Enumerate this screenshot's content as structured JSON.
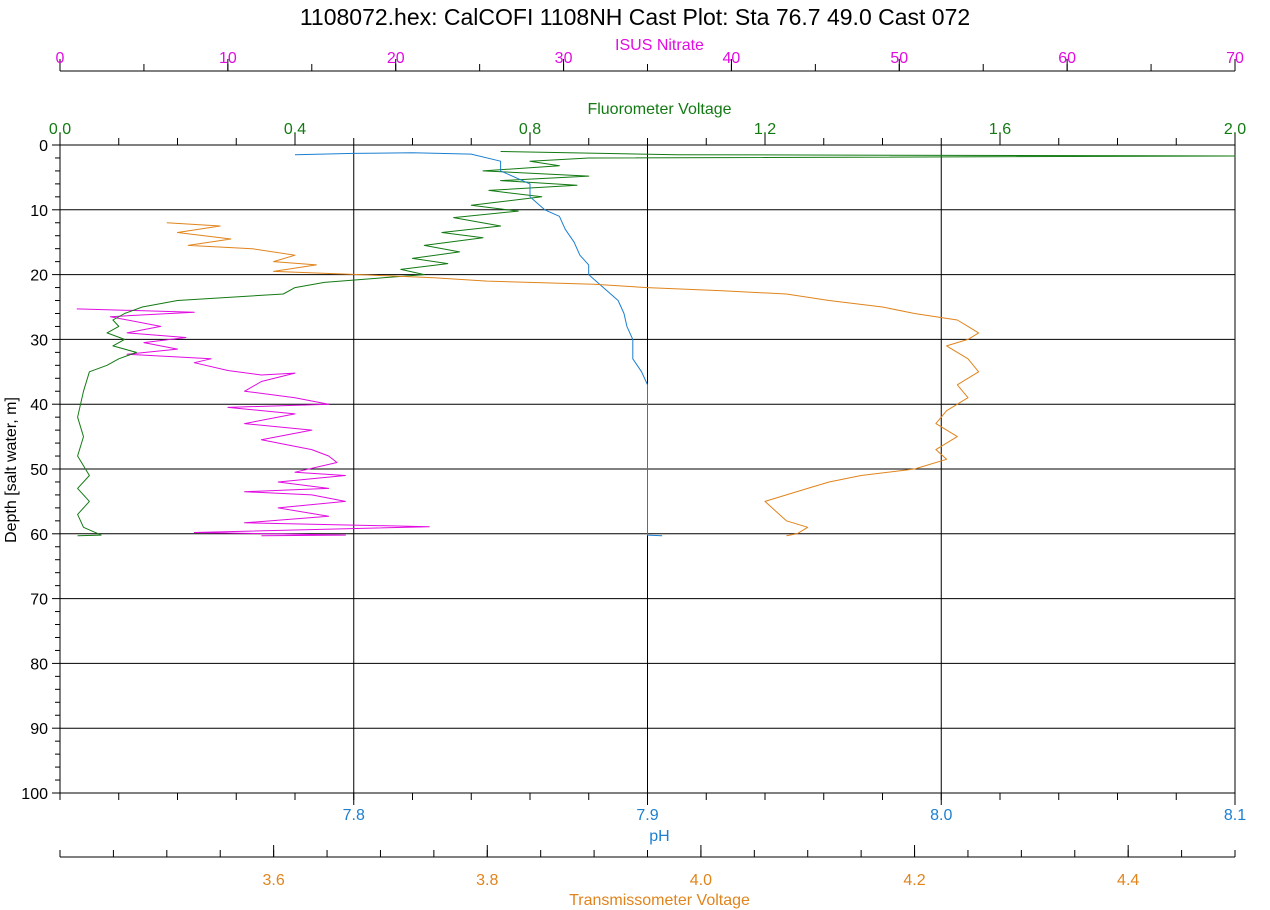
{
  "chart_data": {
    "type": "line",
    "title": "1108072.hex: CalCOFI 1108NH Cast Plot: Sta 76.7 49.0 Cast 072",
    "grid": true,
    "y_axis": {
      "label": "Depth [salt water, m]",
      "range": [
        0,
        100
      ],
      "inverted": true,
      "ticks": [
        "0",
        "10",
        "20",
        "30",
        "40",
        "50",
        "60",
        "70",
        "80",
        "90",
        "100"
      ]
    },
    "x_axes": [
      {
        "id": "nitrate",
        "label": "ISUS Nitrate",
        "position": "top",
        "color": "#e10ce1",
        "range": [
          0,
          70
        ],
        "ticks": [
          "0",
          "10",
          "20",
          "30",
          "40",
          "50",
          "60",
          "70"
        ]
      },
      {
        "id": "fluor",
        "label": "Fluorometer Voltage",
        "position": "top",
        "color": "#137a13",
        "range": [
          0,
          2
        ],
        "ticks": [
          "0.0",
          "0.4",
          "0.8",
          "1.2",
          "1.6",
          "2.0"
        ]
      },
      {
        "id": "ph",
        "label": "pH",
        "position": "bottom",
        "color": "#1c7fd0",
        "range": [
          7.7,
          8.1
        ],
        "ticks": [
          "7.8",
          "7.9",
          "8.0",
          "8.1"
        ]
      },
      {
        "id": "trans",
        "label": "Transmissometer Voltage",
        "position": "bottom",
        "color": "#e0841c",
        "range": [
          3.4,
          4.5
        ],
        "ticks": [
          "3.6",
          "3.8",
          "4.0",
          "4.2",
          "4.4"
        ]
      }
    ],
    "series": [
      {
        "axis": "nitrate",
        "color": "#e10ce1",
        "points": [
          [
            1,
            25.3
          ],
          [
            8,
            25.8
          ],
          [
            3,
            26.5
          ],
          [
            6,
            28
          ],
          [
            4,
            29
          ],
          [
            7.5,
            29.7
          ],
          [
            5,
            30.5
          ],
          [
            7,
            31.5
          ],
          [
            4,
            32.3
          ],
          [
            9,
            33
          ],
          [
            8,
            33.6
          ],
          [
            10,
            34.8
          ],
          [
            12,
            35.5
          ],
          [
            14,
            35.2
          ],
          [
            12,
            36.5
          ],
          [
            11,
            38
          ],
          [
            14,
            39
          ],
          [
            16,
            40
          ],
          [
            10,
            40.5
          ],
          [
            14,
            41.5
          ],
          [
            11,
            43
          ],
          [
            15,
            44
          ],
          [
            12,
            45.5
          ],
          [
            15,
            47
          ],
          [
            16,
            48
          ],
          [
            16.5,
            49
          ],
          [
            14,
            50.5
          ],
          [
            17,
            51
          ],
          [
            13,
            52
          ],
          [
            16,
            53
          ],
          [
            11,
            53.5
          ],
          [
            15,
            54
          ],
          [
            17,
            55
          ],
          [
            13,
            56
          ],
          [
            16,
            57.3
          ],
          [
            11,
            58.3
          ],
          [
            22,
            58.9
          ],
          [
            8,
            59.8
          ],
          [
            17,
            60.2
          ],
          [
            12,
            60.3
          ]
        ]
      },
      {
        "axis": "fluor",
        "color": "#137a13",
        "points": [
          [
            0.75,
            1
          ],
          [
            1.05,
            1.5
          ],
          [
            2.0,
            1.7
          ],
          [
            0.9,
            2
          ],
          [
            0.8,
            2.5
          ],
          [
            0.85,
            3.2
          ],
          [
            0.72,
            4
          ],
          [
            0.9,
            4.8
          ],
          [
            0.75,
            5.5
          ],
          [
            0.88,
            6.2
          ],
          [
            0.73,
            7
          ],
          [
            0.82,
            8
          ],
          [
            0.7,
            9.3
          ],
          [
            0.78,
            10.2
          ],
          [
            0.67,
            11.2
          ],
          [
            0.75,
            12.5
          ],
          [
            0.65,
            13.5
          ],
          [
            0.72,
            14.3
          ],
          [
            0.62,
            15.5
          ],
          [
            0.68,
            16.5
          ],
          [
            0.6,
            17.5
          ],
          [
            0.66,
            18.3
          ],
          [
            0.58,
            19.2
          ],
          [
            0.62,
            20
          ],
          [
            0.55,
            20.5
          ],
          [
            0.45,
            21.2
          ],
          [
            0.4,
            22
          ],
          [
            0.38,
            23
          ],
          [
            0.2,
            24
          ],
          [
            0.14,
            25
          ],
          [
            0.11,
            26
          ],
          [
            0.09,
            27
          ],
          [
            0.1,
            28
          ],
          [
            0.08,
            29
          ],
          [
            0.11,
            30
          ],
          [
            0.09,
            31
          ],
          [
            0.13,
            32
          ],
          [
            0.1,
            33
          ],
          [
            0.08,
            34
          ],
          [
            0.05,
            35
          ],
          [
            0.04,
            38
          ],
          [
            0.03,
            42
          ],
          [
            0.04,
            45
          ],
          [
            0.03,
            48
          ],
          [
            0.05,
            51
          ],
          [
            0.03,
            53
          ],
          [
            0.05,
            55
          ],
          [
            0.03,
            57
          ],
          [
            0.04,
            59
          ],
          [
            0.07,
            60.2
          ],
          [
            0.03,
            60.3
          ]
        ]
      },
      {
        "axis": "ph",
        "color": "#1c7fd0",
        "points": [
          [
            7.78,
            1.5
          ],
          [
            7.8,
            1.3
          ],
          [
            7.82,
            1.2
          ],
          [
            7.84,
            1.4
          ],
          [
            7.85,
            2.5
          ],
          [
            7.85,
            4
          ],
          [
            7.86,
            6
          ],
          [
            7.86,
            8
          ],
          [
            7.865,
            10
          ],
          [
            7.87,
            11
          ],
          [
            7.872,
            13
          ],
          [
            7.875,
            15
          ],
          [
            7.877,
            17
          ],
          [
            7.88,
            18.5
          ],
          [
            7.88,
            20
          ],
          [
            7.885,
            22
          ],
          [
            7.89,
            24
          ],
          [
            7.892,
            26
          ],
          [
            7.893,
            28
          ],
          [
            7.895,
            30
          ],
          [
            7.895,
            33
          ],
          [
            7.898,
            35
          ],
          [
            7.9,
            37
          ],
          [
            7.9,
            40
          ],
          [
            7.9,
            45
          ],
          [
            7.9,
            50
          ],
          [
            7.9,
            55
          ],
          [
            7.9,
            60.2
          ],
          [
            7.905,
            60.3
          ]
        ]
      },
      {
        "axis": "trans",
        "color": "#e0841c",
        "points": [
          [
            3.5,
            12
          ],
          [
            3.55,
            12.5
          ],
          [
            3.51,
            13.5
          ],
          [
            3.56,
            14.5
          ],
          [
            3.52,
            15.5
          ],
          [
            3.58,
            16
          ],
          [
            3.62,
            17
          ],
          [
            3.6,
            18
          ],
          [
            3.64,
            18.5
          ],
          [
            3.6,
            19.5
          ],
          [
            3.68,
            20
          ],
          [
            3.75,
            20.5
          ],
          [
            3.8,
            21
          ],
          [
            3.9,
            21.5
          ],
          [
            3.95,
            22
          ],
          [
            4.02,
            22.5
          ],
          [
            4.08,
            23
          ],
          [
            4.12,
            24
          ],
          [
            4.17,
            25
          ],
          [
            4.2,
            26
          ],
          [
            4.24,
            27
          ],
          [
            4.25,
            28
          ],
          [
            4.26,
            29
          ],
          [
            4.25,
            30
          ],
          [
            4.23,
            31
          ],
          [
            4.25,
            33
          ],
          [
            4.26,
            35
          ],
          [
            4.24,
            37
          ],
          [
            4.25,
            39
          ],
          [
            4.23,
            41
          ],
          [
            4.22,
            43
          ],
          [
            4.24,
            45
          ],
          [
            4.22,
            47
          ],
          [
            4.23,
            48.5
          ],
          [
            4.2,
            50
          ],
          [
            4.15,
            51
          ],
          [
            4.12,
            52
          ],
          [
            4.1,
            53
          ],
          [
            4.08,
            54
          ],
          [
            4.06,
            55
          ],
          [
            4.07,
            56.5
          ],
          [
            4.08,
            58
          ],
          [
            4.1,
            59
          ],
          [
            4.09,
            60
          ],
          [
            4.08,
            60.3
          ]
        ]
      }
    ]
  }
}
